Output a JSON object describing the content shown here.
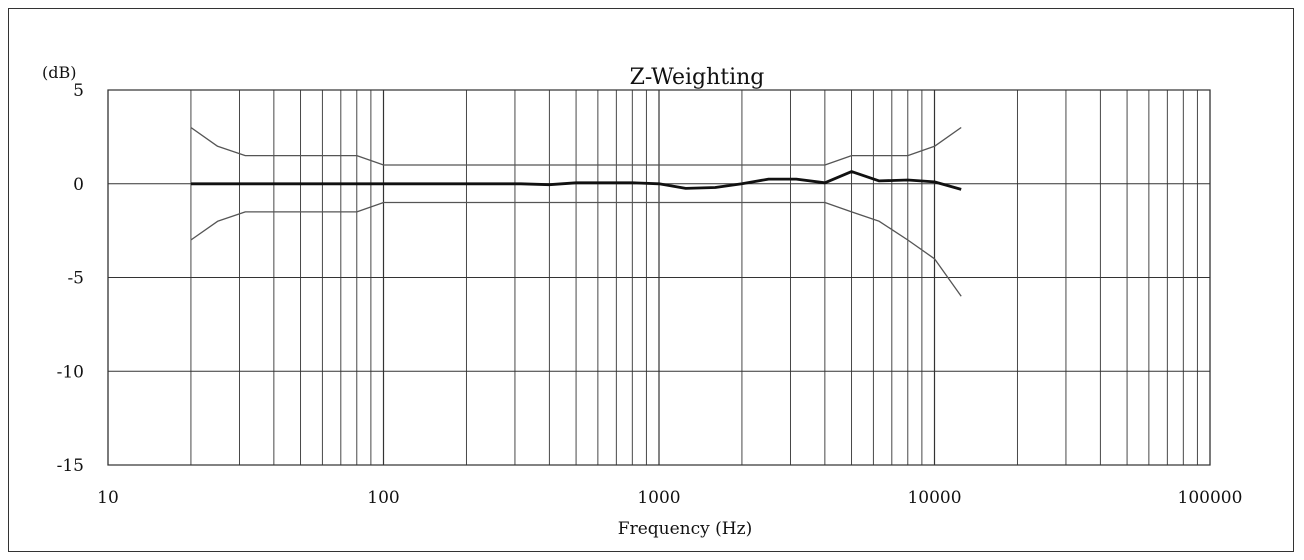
{
  "chart_data": {
    "type": "line",
    "title": "Z-Weighting",
    "xlabel": "Frequency (Hz)",
    "ylabel": "(dB)",
    "xscale": "log",
    "xlim": [
      10,
      100000
    ],
    "ylim": [
      -15,
      5
    ],
    "grid": true,
    "x_ticks": [
      10,
      100,
      1000,
      10000,
      100000
    ],
    "x_tick_labels": [
      "10",
      "100",
      "1000",
      "10000",
      "100000"
    ],
    "y_ticks": [
      5,
      0,
      -5,
      -10,
      -15
    ],
    "y_tick_labels": [
      "5",
      "0",
      "-5",
      "-10",
      "-15"
    ],
    "series": [
      {
        "role": "upper-tolerance",
        "color": "#555555",
        "x": [
          20,
          25,
          31.5,
          80,
          100,
          4000,
          5000,
          8000,
          10000,
          12500
        ],
        "y": [
          3,
          2,
          1.5,
          1.5,
          1,
          1,
          1.5,
          1.5,
          2,
          3
        ]
      },
      {
        "role": "lower-tolerance",
        "color": "#555555",
        "x": [
          20,
          25,
          31.5,
          80,
          100,
          4000,
          5000,
          6300,
          8000,
          10000,
          12500
        ],
        "y": [
          -3,
          -2,
          -1.5,
          -1.5,
          -1,
          -1,
          -1.5,
          -2,
          -3,
          -4,
          -6
        ]
      },
      {
        "role": "measured-response",
        "color": "#111111",
        "x": [
          20,
          100,
          315,
          400,
          500,
          630,
          800,
          1000,
          1250,
          1600,
          2000,
          2500,
          3150,
          4000,
          5000,
          6300,
          8000,
          10000,
          12500
        ],
        "y": [
          0,
          0,
          0,
          -0.05,
          0.05,
          0.05,
          0.05,
          0,
          -0.25,
          -0.2,
          0,
          0.25,
          0.25,
          0.05,
          0.65,
          0.15,
          0.2,
          0.1,
          -0.3
        ]
      }
    ]
  }
}
